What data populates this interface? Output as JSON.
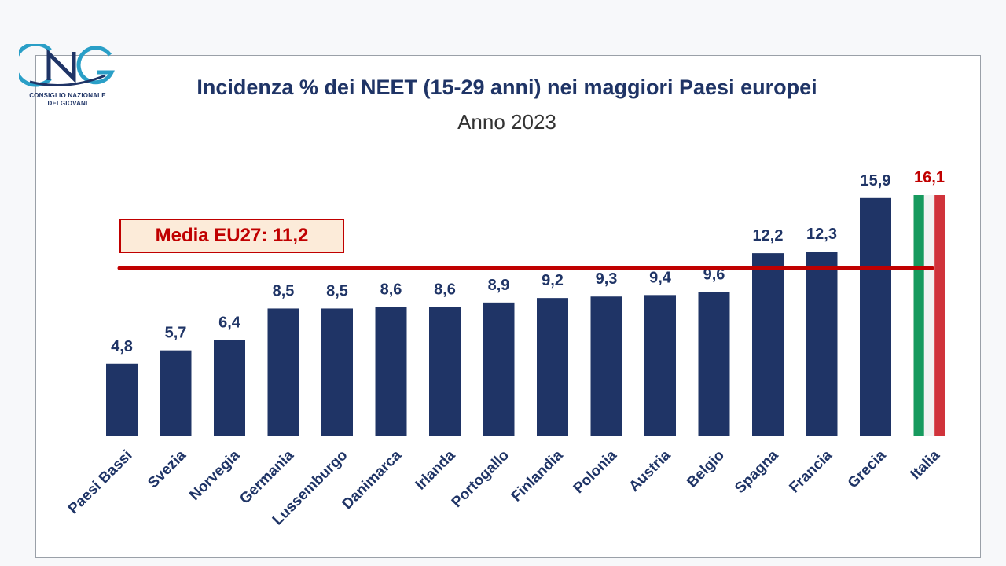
{
  "logo": {
    "letters": "CNG",
    "caption_line1": "CONSIGLIO NAZIONALE",
    "caption_line2": "DEI GIOVANI"
  },
  "colors": {
    "bar": "#1f3466",
    "label": "#1f3466",
    "highlight_label": "#c00000",
    "avg_line": "#c00000",
    "flag_green": "#179a5e",
    "flag_white": "#f2f2f2",
    "flag_red": "#d0333b"
  },
  "chart_data": {
    "type": "bar",
    "title": "Incidenza % dei NEET (15-29 anni) nei maggiori Paesi europei",
    "subtitle": "Anno 2023",
    "categories": [
      "Paesi Bassi",
      "Svezia",
      "Norvegia",
      "Germania",
      "Lussemburgo",
      "Danimarca",
      "Irlanda",
      "Portogallo",
      "Finlandia",
      "Polonia",
      "Austria",
      "Belgio",
      "Spagna",
      "Francia",
      "Grecia",
      "Italia"
    ],
    "values": [
      4.8,
      5.7,
      6.4,
      8.5,
      8.5,
      8.6,
      8.6,
      8.9,
      9.2,
      9.3,
      9.4,
      9.6,
      12.2,
      12.3,
      15.9,
      16.1
    ],
    "value_labels": [
      "4,8",
      "5,7",
      "6,4",
      "8,5",
      "8,5",
      "8,6",
      "8,6",
      "8,9",
      "9,2",
      "9,3",
      "9,4",
      "9,6",
      "12,2",
      "12,3",
      "15,9",
      "16,1"
    ],
    "highlight": "Italia",
    "ylim": [
      0,
      16.1
    ],
    "reference_line": {
      "value": 11.2,
      "label": "Media EU27: 11,2"
    },
    "xlabel": "",
    "ylabel": ""
  }
}
